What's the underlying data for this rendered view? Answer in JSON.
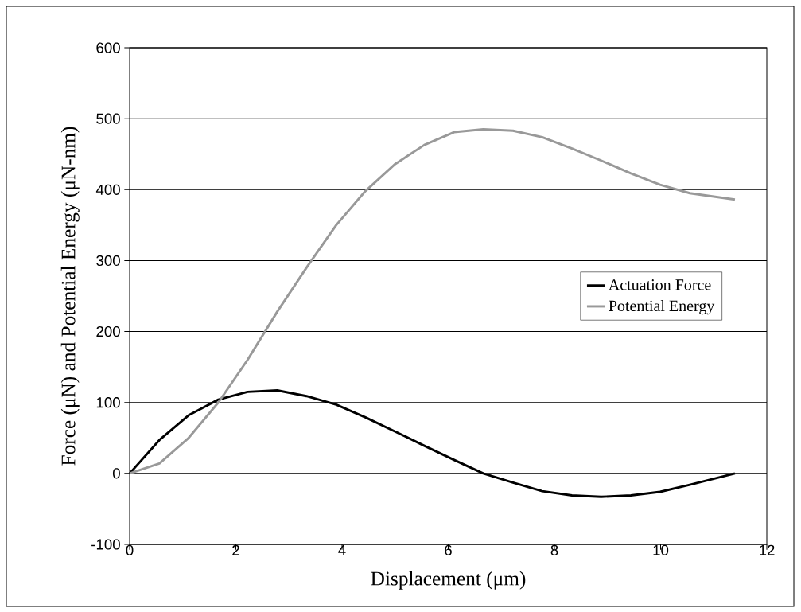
{
  "chart_data": {
    "type": "line",
    "xlabel": "Displacement (μm)",
    "ylabel": "Force (μN) and Potential Energy (μN-nm)",
    "x": [
      0,
      0.56,
      1.11,
      1.67,
      2.22,
      2.78,
      3.33,
      3.89,
      4.44,
      5.0,
      5.55,
      6.11,
      6.66,
      7.22,
      7.77,
      8.33,
      8.88,
      9.44,
      9.99,
      10.55,
      11.4
    ],
    "series": [
      {
        "name": "Actuation Force",
        "color": "#000000",
        "values": [
          0,
          47,
          82,
          104,
          115,
          117,
          109,
          97,
          79,
          59,
          39,
          19,
          0,
          -13,
          -25,
          -31,
          -33,
          -31,
          -26,
          -16,
          0
        ]
      },
      {
        "name": "Potential Energy",
        "color": "#999999",
        "values": [
          0,
          14,
          50,
          100,
          160,
          228,
          290,
          350,
          398,
          436,
          463,
          481,
          485,
          483,
          474,
          458,
          441,
          423,
          407,
          395,
          386
        ]
      }
    ],
    "xlim": [
      0,
      12
    ],
    "xticks": [
      0,
      2,
      4,
      6,
      8,
      10,
      12
    ],
    "ylim": [
      -100,
      600
    ],
    "yticks": [
      -100,
      0,
      100,
      200,
      300,
      400,
      500,
      600
    ],
    "grid": "y",
    "legend": "right",
    "marker": "none",
    "line_style": "solid"
  }
}
